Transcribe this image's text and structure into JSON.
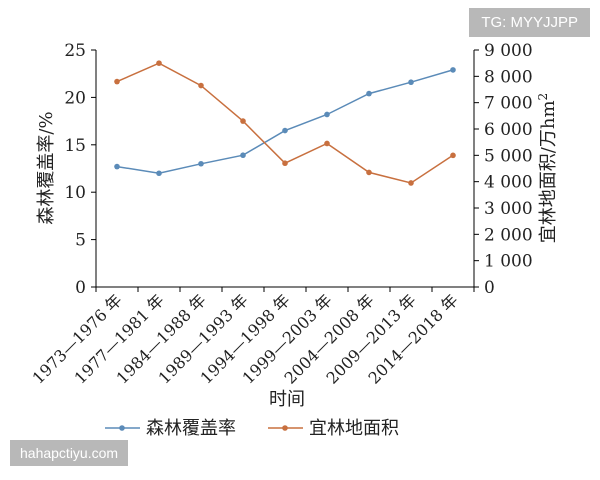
{
  "chart_data": {
    "type": "line",
    "xlabel": "时间",
    "ylabel_left": "森林覆盖率/%",
    "ylabel_right_prefix": "宜林地面积/万hm",
    "ylabel_right_sup": "2",
    "categories": [
      "1973—1976 年",
      "1977—1981 年",
      "1984—1988 年",
      "1989—1993 年",
      "1994—1998 年",
      "1999—2003 年",
      "2004—2008 年",
      "2009—2013 年",
      "2014—2018 年"
    ],
    "y_left_range": [
      0,
      25
    ],
    "y_left_ticks": [
      "0",
      "5",
      "10",
      "15",
      "20",
      "25"
    ],
    "y_right_range": [
      0,
      9000
    ],
    "y_right_ticks": [
      "0",
      "1 000",
      "2 000",
      "3 000",
      "4 000",
      "5 000",
      "6 000",
      "7 000",
      "8 000",
      "9 000"
    ],
    "grid": false,
    "legend_position": "bottom",
    "series": [
      {
        "name": "森林覆盖率",
        "axis": "left",
        "color": "#5b8bb8",
        "values": [
          12.7,
          12.0,
          13.0,
          13.9,
          16.5,
          18.2,
          20.4,
          21.6,
          22.9
        ]
      },
      {
        "name": "宜林地面积",
        "axis": "right",
        "color": "#c8703f",
        "values": [
          7800,
          8500,
          7650,
          6300,
          4700,
          5450,
          4350,
          3950,
          5000
        ]
      }
    ]
  },
  "watermarks": {
    "top": "TG: MYYJJPP",
    "bottom": "hahapctiyu.com"
  }
}
